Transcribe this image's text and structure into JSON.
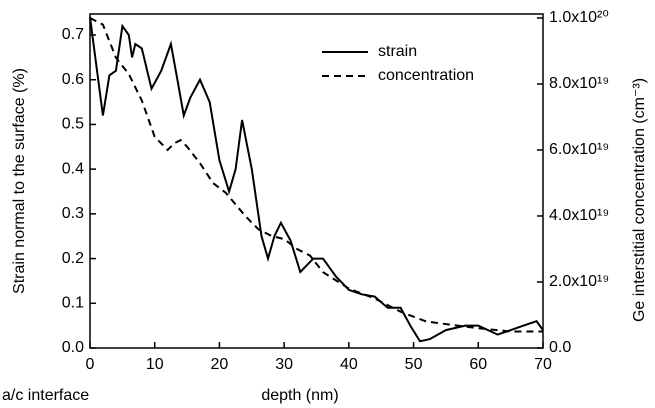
{
  "chart_data": {
    "type": "line",
    "xlabel": "depth (nm)",
    "ylabel": "Strain normal to the surface (%)",
    "y2label": "Ge interstitial concentration (cm⁻³)",
    "annotation": "a/c interface",
    "xlim": [
      0,
      70
    ],
    "xticks": [
      0,
      10,
      20,
      30,
      40,
      50,
      60,
      70
    ],
    "ylim": [
      0,
      0.747
    ],
    "yticks": [
      {
        "value": 0,
        "label": "0.0"
      },
      0.1,
      0.2,
      0.3,
      0.4,
      0.5,
      0.6,
      0.7
    ],
    "y2lim": [
      0,
      1.012e+20
    ],
    "y2ticks": [
      {
        "value": 0,
        "label": "0.0"
      },
      {
        "value": 2e+19,
        "label": "2.0x10¹⁹"
      },
      {
        "value": 4e+19,
        "label": "4.0x10¹⁹"
      },
      {
        "value": 6e+19,
        "label": "6.0x10¹⁹"
      },
      {
        "value": 8e+19,
        "label": "8.0x10¹⁹"
      },
      {
        "value": 1e+20,
        "label": "1.0x10²⁰"
      }
    ],
    "legend": "upper right",
    "series": [
      {
        "name": "strain",
        "color": "#000000",
        "dash": "solid",
        "x": [
          0,
          2,
          3,
          4,
          5,
          6,
          6.5,
          7,
          8,
          9.5,
          11,
          12.5,
          13.5,
          14.5,
          15.5,
          17,
          18.5,
          20,
          21.5,
          22.5,
          23.5,
          25,
          26.5,
          27.5,
          28.5,
          29.5,
          31,
          32.5,
          34.5,
          36,
          38,
          40,
          42,
          44,
          46,
          48,
          49.5,
          51,
          52.5,
          55,
          58,
          60,
          63,
          67,
          69,
          70
        ],
        "values": [
          0.74,
          0.52,
          0.61,
          0.62,
          0.72,
          0.7,
          0.65,
          0.68,
          0.67,
          0.58,
          0.62,
          0.68,
          0.6,
          0.52,
          0.56,
          0.6,
          0.55,
          0.42,
          0.35,
          0.4,
          0.51,
          0.4,
          0.25,
          0.2,
          0.25,
          0.28,
          0.24,
          0.17,
          0.2,
          0.2,
          0.16,
          0.13,
          0.12,
          0.115,
          0.09,
          0.09,
          0.05,
          0.015,
          0.02,
          0.04,
          0.05,
          0.05,
          0.03,
          0.05,
          0.06,
          0.04
        ]
      },
      {
        "name": "concentration",
        "color": "#000000",
        "dash": "dashed",
        "axis": "y2",
        "x": [
          0,
          2,
          4,
          6,
          8,
          10,
          12,
          13,
          14,
          15,
          17,
          19,
          21,
          24,
          26,
          28,
          30,
          32,
          34,
          36,
          40,
          44,
          48,
          52,
          56,
          60,
          65,
          70
        ],
        "values": [
          1e+20,
          9.8e+19,
          8.8e+19,
          8.3e+19,
          7.5e+19,
          6.4e+19,
          6e+19,
          6.2e+19,
          6.3e+19,
          6.1e+19,
          5.6e+19,
          5e+19,
          4.7e+19,
          4e+19,
          3.6e+19,
          3.4e+19,
          3.3e+19,
          3e+19,
          2.8e+19,
          2.3e+19,
          1.8e+19,
          1.5e+19,
          1.1e+19,
          8e+18,
          7e+18,
          6e+18,
          5e+18,
          5e+18
        ]
      }
    ]
  }
}
